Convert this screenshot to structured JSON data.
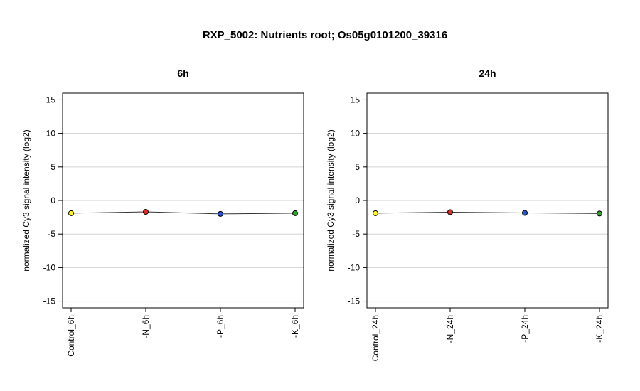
{
  "figure": {
    "title": "RXP_5002: Nutrients root; Os05g0101200_39316"
  },
  "chart_data": [
    {
      "type": "line",
      "title": "6h",
      "xlabel": "",
      "ylabel": "normalized Cy3 signal intensity (log2)",
      "ylim": [
        -16,
        16
      ],
      "yticks": [
        -15,
        -10,
        -5,
        0,
        5,
        10,
        15
      ],
      "grid": true,
      "categories": [
        "Control_6h",
        "-N_6h",
        "-P_6h",
        "-K_6h"
      ],
      "values": [
        -1.9,
        -1.7,
        -2.0,
        -1.9
      ],
      "point_colors": [
        "#ffff00",
        "#e8251f",
        "#2457d6",
        "#2ea02c"
      ],
      "line_color": "#333333"
    },
    {
      "type": "line",
      "title": "24h",
      "xlabel": "",
      "ylabel": "normalized Cy3 signal intensity (log2)",
      "ylim": [
        -16,
        16
      ],
      "yticks": [
        -15,
        -10,
        -5,
        0,
        5,
        10,
        15
      ],
      "grid": true,
      "categories": [
        "Control_24h",
        "-N_24h",
        "-P_24h",
        "-K_24h"
      ],
      "values": [
        -1.9,
        -1.75,
        -1.85,
        -1.95
      ],
      "point_colors": [
        "#ffff00",
        "#e8251f",
        "#2457d6",
        "#2ea02c"
      ],
      "line_color": "#333333"
    }
  ]
}
